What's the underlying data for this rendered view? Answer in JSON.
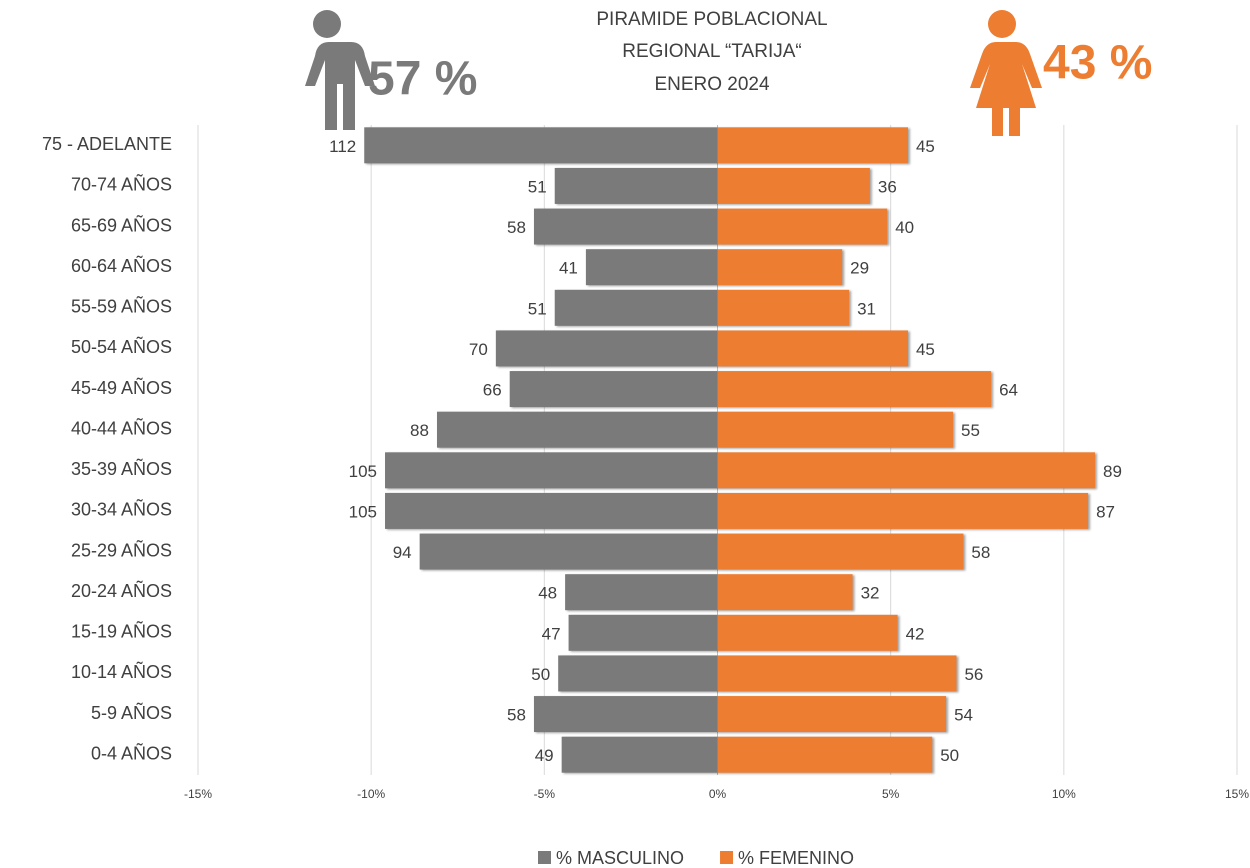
{
  "chart_data": {
    "type": "bar",
    "orientation": "horizontal",
    "stacking": "diverging",
    "title": [
      "PIRAMIDE POBLACIONAL",
      "REGIONAL “TARIJA“",
      "ENERO 2024"
    ],
    "annotations": [
      "57 %",
      "43 %"
    ],
    "categories": [
      "75 - ADELANTE",
      "70-74 AÑOS",
      "65-69 AÑOS",
      "60-64 AÑOS",
      "55-59 AÑOS",
      "50-54 AÑOS",
      "45-49 AÑOS",
      "40-44 AÑOS",
      "35-39 AÑOS",
      "30-34 AÑOS",
      "25-29 AÑOS",
      "20-24 AÑOS",
      "15-19 AÑOS",
      "10-14 AÑOS",
      "5-9 AÑOS",
      "0-4 AÑOS"
    ],
    "series": [
      {
        "name": "% MASCULINO",
        "color": "#7a7a7a",
        "values": [
          -10.2,
          -4.7,
          -5.3,
          -3.8,
          -4.7,
          -6.4,
          -6.0,
          -8.1,
          -9.6,
          -9.6,
          -8.6,
          -4.4,
          -4.3,
          -4.6,
          -5.3,
          -4.5
        ],
        "counts": [
          112,
          51,
          58,
          41,
          51,
          70,
          66,
          88,
          105,
          105,
          94,
          48,
          47,
          50,
          58,
          49
        ]
      },
      {
        "name": "% FEMENINO",
        "color": "#ed7d31",
        "values": [
          5.5,
          4.4,
          4.9,
          3.6,
          3.8,
          5.5,
          7.9,
          6.8,
          10.9,
          10.7,
          7.1,
          3.9,
          5.2,
          6.9,
          6.6,
          6.2
        ],
        "counts": [
          45,
          36,
          40,
          29,
          31,
          45,
          64,
          55,
          89,
          87,
          58,
          32,
          42,
          56,
          54,
          50
        ]
      }
    ],
    "xlim": [
      -15,
      15
    ],
    "xticks": [
      {
        "value": -15,
        "label": "-15%"
      },
      {
        "value": -10,
        "label": "-10%"
      },
      {
        "value": -5,
        "label": "-5%"
      },
      {
        "value": 0,
        "label": "0%"
      },
      {
        "value": 5,
        "label": "5%"
      },
      {
        "value": 10,
        "label": "10%"
      },
      {
        "value": 15,
        "label": "15%"
      }
    ],
    "grid": true,
    "legend": "bottom"
  }
}
